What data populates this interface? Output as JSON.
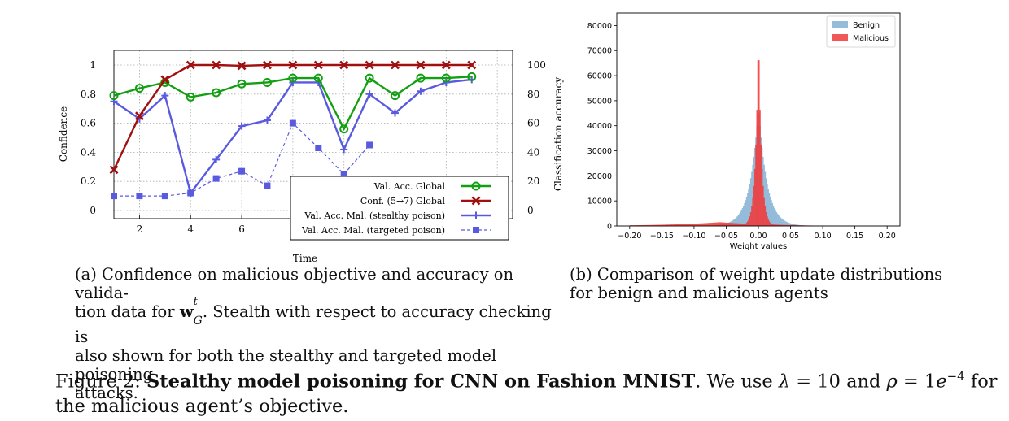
{
  "figure": {
    "caption_prefix": "Figure 2:",
    "caption_bold": "Stealthy model poisoning for CNN on Fashion MNIST",
    "caption_mid": ". We use ",
    "lambda_sym": "λ",
    "lambda_eq": " = 10 and ",
    "rho_sym": "ρ",
    "rho_eq": " = 1",
    "rho_base": "e",
    "rho_exp": "−4",
    "caption_tail": " for the malicious agent’s objective."
  },
  "subcaption_a": {
    "prefix": "(a) Confidence on malicious objective and accuracy on valida-",
    "line2a": "tion data for ",
    "bold_w": "w",
    "sup": "t",
    "sub": "G",
    "line2b": ".  Stealth with respect to accuracy checking is",
    "line3": "also shown for both the stealthy and targeted model poisoning",
    "line4": "attacks."
  },
  "subcaption_b": {
    "line1": "(b) Comparison of weight update distributions",
    "line2": "for benign and malicious agents"
  },
  "chart_data": [
    {
      "type": "line",
      "xlabel": "Time",
      "ylabel": "Confidence",
      "ylabel_right": "Classification accuracy",
      "xlim": [
        1,
        16
      ],
      "ylim": [
        0,
        1
      ],
      "ylim_right": [
        0,
        100
      ],
      "xticks": [
        "2",
        "4",
        "6",
        "8",
        "10",
        "12",
        "14",
        "16"
      ],
      "yticks": [
        "0",
        "0.2",
        "0.4",
        "0.6",
        "0.8",
        "1"
      ],
      "yticks_right": [
        "0",
        "20",
        "40",
        "60",
        "80",
        "100"
      ],
      "grid": true,
      "legend_position": "bottom-right",
      "series": [
        {
          "name": "Val. Acc. Global",
          "axis": "right",
          "color": "#12a012",
          "marker": "circle",
          "style": "solid",
          "x": [
            1,
            2,
            3,
            4,
            5,
            6,
            7,
            8,
            9,
            10,
            11,
            12,
            13,
            14,
            15
          ],
          "values": [
            79,
            84,
            88,
            78,
            81,
            87,
            88,
            91,
            91,
            56,
            91,
            79,
            91,
            91,
            92
          ]
        },
        {
          "name": "Conf. (5→7) Global",
          "axis": "left",
          "color": "#a01010",
          "marker": "x",
          "style": "solid",
          "x": [
            1,
            2,
            3,
            4,
            5,
            6,
            7,
            8,
            9,
            10,
            11,
            12,
            13,
            14,
            15
          ],
          "values": [
            0.28,
            0.65,
            0.9,
            1.0,
            1.0,
            0.995,
            1.0,
            1.0,
            1.0,
            1.0,
            1.0,
            1.0,
            1.0,
            1.0,
            1.0
          ]
        },
        {
          "name": "Val. Acc. Mal. (stealthy poison)",
          "axis": "right",
          "color": "#5a5ae0",
          "marker": "plus",
          "style": "solid",
          "x": [
            1,
            2,
            3,
            4,
            5,
            6,
            7,
            8,
            9,
            10,
            11,
            12,
            13,
            14,
            15
          ],
          "values": [
            75,
            63,
            79,
            12,
            35,
            58,
            62,
            88,
            88,
            42,
            80,
            67,
            82,
            88,
            90
          ]
        },
        {
          "name": "Val. Acc. Mal. (targeted poison)",
          "axis": "right",
          "color": "#5a5ae0",
          "marker": "square",
          "style": "dashed",
          "x": [
            1,
            2,
            3,
            4,
            5,
            6,
            7,
            8,
            9,
            10,
            11
          ],
          "values": [
            10,
            10,
            10,
            12,
            22,
            27,
            17,
            60,
            43,
            25,
            45
          ]
        }
      ]
    },
    {
      "type": "bar",
      "subtype": "histogram",
      "xlabel": "Weight values",
      "ylabel": "",
      "xlim": [
        -0.22,
        0.22
      ],
      "ylim": [
        0,
        85000
      ],
      "xticks": [
        "−0.20",
        "−0.15",
        "−0.10",
        "−0.05",
        "0.00",
        "0.05",
        "0.10",
        "0.15",
        "0.20"
      ],
      "yticks": [
        "0",
        "10000",
        "20000",
        "30000",
        "40000",
        "50000",
        "60000",
        "70000",
        "80000"
      ],
      "legend_position": "top-right",
      "series": [
        {
          "name": "Benign",
          "color": "#8fb9d8",
          "peak": 48000,
          "center": 0.0,
          "scale": 0.013
        },
        {
          "name": "Malicious",
          "color": "#f03a3a",
          "peak": 79000,
          "center": 0.0,
          "scale": 0.0045,
          "tail_range": [
            -0.2,
            0.15
          ]
        }
      ]
    }
  ]
}
